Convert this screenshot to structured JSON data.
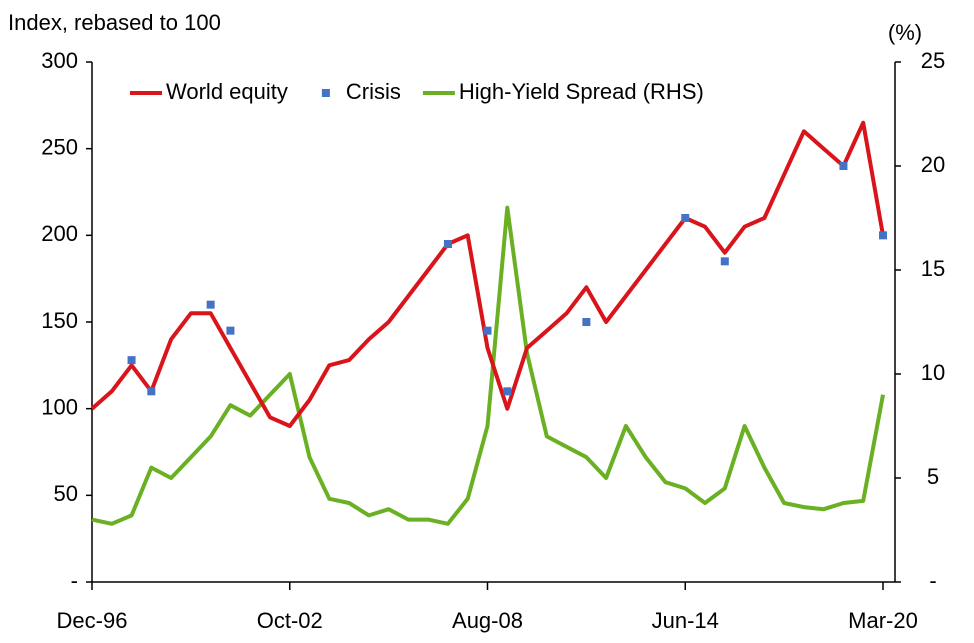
{
  "chart_data": {
    "type": "line",
    "y_label": "Index, rebased to 100",
    "y2_label": "(%)",
    "categories": [
      "Dec-96",
      null,
      null,
      null,
      null,
      null,
      null,
      null,
      null,
      null,
      "Oct-02",
      null,
      null,
      null,
      null,
      null,
      null,
      null,
      null,
      null,
      "Aug-08",
      null,
      null,
      null,
      null,
      null,
      null,
      null,
      null,
      null,
      "Jun-14",
      null,
      null,
      null,
      null,
      null,
      null,
      null,
      null,
      null,
      "Mar-20"
    ],
    "series": [
      {
        "name": "World equity",
        "color": "#d9141b",
        "kind": "line",
        "values": [
          100,
          110,
          125,
          110,
          140,
          155,
          155,
          135,
          115,
          95,
          90,
          105,
          125,
          128,
          140,
          150,
          165,
          180,
          195,
          200,
          135,
          100,
          135,
          145,
          155,
          170,
          150,
          165,
          180,
          195,
          210,
          205,
          190,
          205,
          210,
          235,
          260,
          250,
          240,
          265,
          200
        ]
      },
      {
        "name": "Crisis",
        "color": "#4472c4",
        "kind": "marker",
        "values": [
          null,
          null,
          128,
          110,
          null,
          null,
          160,
          145,
          null,
          null,
          null,
          null,
          null,
          null,
          null,
          null,
          null,
          null,
          195,
          null,
          145,
          110,
          null,
          null,
          null,
          150,
          null,
          null,
          null,
          null,
          210,
          null,
          185,
          null,
          null,
          null,
          null,
          null,
          240,
          null,
          200
        ]
      },
      {
        "name": "High-Yield Spread (RHS)",
        "color": "#6ab023",
        "kind": "line",
        "axis": "y2",
        "values": [
          3.0,
          2.8,
          3.2,
          5.5,
          5.0,
          6.0,
          7.0,
          8.5,
          8.0,
          9.0,
          10.0,
          6.0,
          4.0,
          3.8,
          3.2,
          3.5,
          3.0,
          3.0,
          2.8,
          4.0,
          7.5,
          18,
          11,
          7.0,
          6.5,
          6.0,
          5.0,
          7.5,
          6.0,
          4.8,
          4.5,
          3.8,
          4.5,
          7.5,
          5.5,
          3.8,
          3.6,
          3.5,
          3.8,
          3.9,
          9.0
        ]
      }
    ],
    "ylim": [
      0,
      300
    ],
    "yticks": [
      {
        "value": 0,
        "label": "-"
      },
      50,
      100,
      150,
      200,
      250,
      300
    ],
    "y2lim": [
      0,
      25
    ],
    "y2ticks": [
      {
        "value": 0,
        "label": "-"
      },
      5,
      10,
      15,
      20,
      25
    ],
    "legend": "top"
  }
}
